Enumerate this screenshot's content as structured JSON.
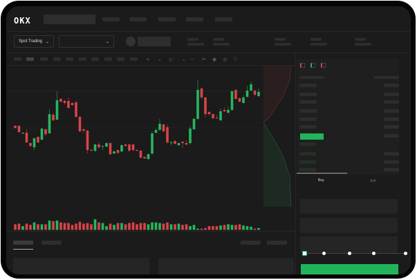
{
  "header": {
    "logo": "OKX",
    "market_selector": "Spot Trading",
    "pair_selector": ""
  },
  "toolbar": {
    "icons": [
      "indicator-icon",
      "chevron-down-icon",
      "drawing-icon",
      "chevron-down-icon",
      "line-icon",
      "ruler-icon",
      "camera-icon",
      "settings-icon",
      "fullscreen-icon"
    ]
  },
  "orderbook": {
    "view_icons": [
      "orderbook-both-icon",
      "orderbook-buy-icon",
      "orderbook-sell-icon"
    ]
  },
  "trade": {
    "tabs": [
      "Buy",
      "Sell"
    ],
    "active_tab": "Buy",
    "slider_percent": 0
  },
  "colors": {
    "up": "#26b75e",
    "down": "#d9434a",
    "background": "#1b1b1b",
    "accent": "#22b45b"
  },
  "candles": [
    [
      68,
      65,
      69,
      64
    ],
    [
      68,
      59,
      69,
      58
    ],
    [
      57,
      58,
      59,
      56
    ],
    [
      58,
      44,
      63,
      43
    ],
    [
      43,
      39,
      44,
      37
    ],
    [
      37,
      50,
      51,
      33
    ],
    [
      52,
      44,
      53,
      43
    ],
    [
      48,
      64,
      65,
      47
    ],
    [
      63,
      56,
      64,
      53
    ],
    [
      57,
      85,
      92,
      57
    ],
    [
      84,
      76,
      87,
      75
    ],
    [
      77,
      105,
      118,
      76
    ],
    [
      107,
      103,
      108,
      102
    ],
    [
      104,
      101,
      106,
      99
    ],
    [
      104,
      94,
      109,
      93
    ],
    [
      101,
      98,
      102,
      97
    ],
    [
      102,
      81,
      104,
      80
    ],
    [
      81,
      60,
      82,
      59
    ],
    [
      63,
      61,
      64,
      58
    ],
    [
      61,
      33,
      62,
      28
    ],
    [
      33,
      32,
      35,
      31
    ],
    [
      32,
      41,
      42,
      30
    ],
    [
      41,
      37,
      44,
      35
    ],
    [
      38,
      38.5,
      40,
      33
    ],
    [
      38,
      43,
      44,
      37
    ],
    [
      43,
      27,
      44,
      25
    ],
    [
      28,
      31,
      32,
      27
    ],
    [
      33,
      29,
      34,
      27
    ],
    [
      31,
      40,
      41,
      30
    ],
    [
      41,
      39,
      42,
      38
    ],
    [
      41,
      32,
      42,
      30
    ],
    [
      41,
      33,
      42,
      31
    ],
    [
      33,
      32,
      34,
      31
    ],
    [
      32,
      22,
      33,
      21
    ],
    [
      23,
      21,
      24,
      20
    ],
    [
      20,
      27,
      28,
      19
    ],
    [
      28,
      57,
      60,
      26
    ],
    [
      58,
      62,
      64,
      57
    ],
    [
      62,
      71,
      78,
      61
    ],
    [
      70,
      60,
      71,
      59
    ],
    [
      66,
      44,
      70,
      42
    ],
    [
      43,
      44,
      46,
      40
    ],
    [
      46,
      42,
      47,
      41
    ],
    [
      40,
      43,
      44,
      39
    ],
    [
      45,
      43,
      46,
      36
    ],
    [
      43,
      41,
      47,
      40
    ],
    [
      43,
      64,
      68,
      41
    ],
    [
      63,
      78,
      80,
      62
    ],
    [
      78,
      120,
      135,
      77
    ],
    [
      122,
      109,
      124,
      107
    ],
    [
      109,
      85,
      110,
      80
    ],
    [
      88,
      85,
      89,
      83
    ],
    [
      85,
      79,
      86,
      78
    ],
    [
      80,
      79,
      84,
      78
    ],
    [
      76,
      89,
      93,
      75
    ],
    [
      91,
      89,
      95,
      88
    ],
    [
      87,
      91,
      96,
      86
    ],
    [
      91,
      118,
      119,
      90
    ],
    [
      120,
      107,
      121,
      106
    ],
    [
      108,
      103,
      109,
      102
    ],
    [
      101,
      109,
      112,
      100
    ],
    [
      110,
      119,
      126,
      109
    ],
    [
      119,
      128,
      132,
      118
    ],
    [
      119,
      113,
      120,
      111
    ],
    [
      111,
      117,
      122,
      110
    ]
  ],
  "volumes": [
    9,
    10,
    6,
    10,
    8,
    12,
    9,
    9,
    9,
    15,
    14,
    15,
    12,
    11,
    11,
    8,
    10,
    13,
    10,
    11,
    9,
    17,
    12,
    11,
    6,
    10,
    8,
    11,
    11,
    9,
    11,
    12,
    9,
    11,
    11,
    9,
    12,
    12,
    11,
    10,
    12,
    9,
    9,
    10,
    8,
    9,
    6,
    8,
    2,
    2,
    3,
    6,
    6,
    6,
    7,
    8,
    9,
    8,
    8,
    9,
    7,
    6,
    5,
    2,
    3
  ]
}
